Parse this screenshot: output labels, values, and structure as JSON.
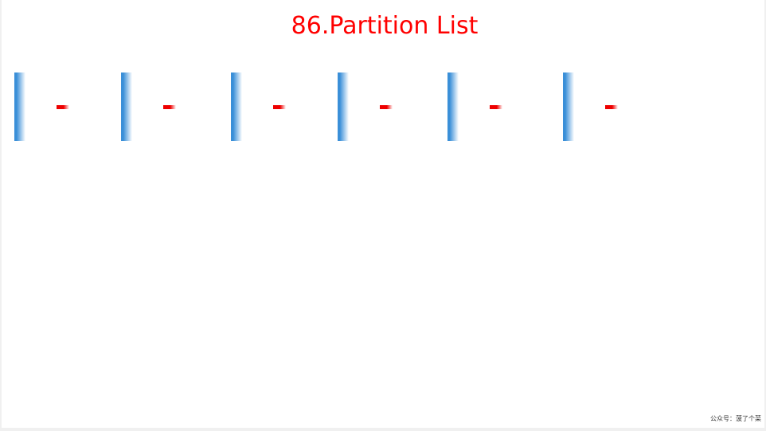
{
  "title": "86.Partition List",
  "footer": "公众号：菠了个菜",
  "colors": {
    "title": "#ff0000",
    "node_bar_dark": "#3a8fd8",
    "node_bar_light": "#ffffff",
    "arrow_dark": "#ee0000",
    "arrow_light": "#ffffff"
  },
  "nodes": [
    {
      "label": ""
    },
    {
      "label": ""
    },
    {
      "label": ""
    },
    {
      "label": ""
    },
    {
      "label": ""
    },
    {
      "label": ""
    }
  ]
}
